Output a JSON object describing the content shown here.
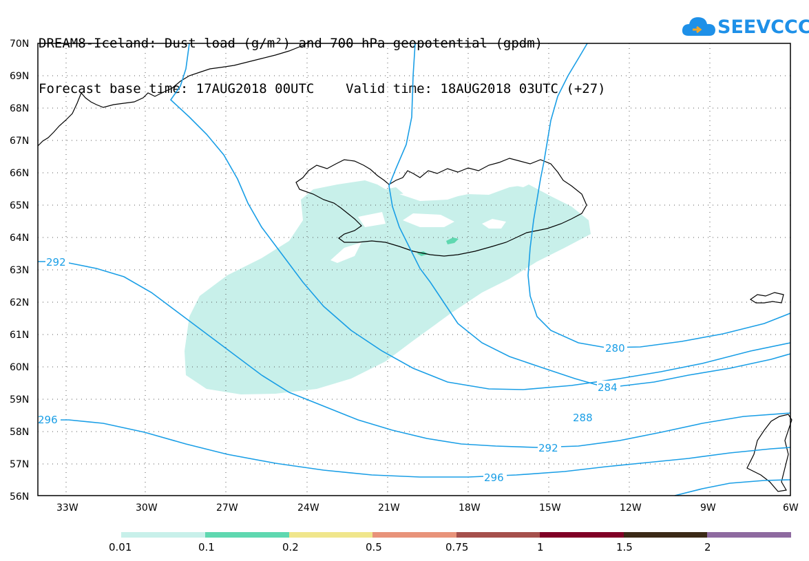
{
  "header": {
    "line1": "DREAM8-Iceland: Dust load (g/m²) and 700 hPa geopotential (gpdm)",
    "line2": "Forecast base time: 17AUG2018 00UTC    Valid time: 18AUG2018 03UTC (+27)"
  },
  "logo": {
    "text": "SEEVCCC",
    "color": "#1e90e8"
  },
  "map": {
    "lat_labels": [
      "70N",
      "69N",
      "68N",
      "67N",
      "66N",
      "65N",
      "64N",
      "63N",
      "62N",
      "61N",
      "60N",
      "59N",
      "58N",
      "57N",
      "56N"
    ],
    "lon_labels": [
      "33W",
      "30W",
      "27W",
      "24W",
      "21W",
      "18W",
      "15W",
      "12W",
      "9W",
      "6W"
    ],
    "contour_labels": [
      "292",
      "296",
      "280",
      "284",
      "288",
      "292",
      "296"
    ],
    "contour_color": "#199ee6",
    "dust_fill_color": "#c8f0ea",
    "dust_fill_color_2": "#5fd8b0"
  },
  "legend": {
    "labels": [
      "0.01",
      "0.1",
      "0.2",
      "0.5",
      "0.75",
      "1",
      "1.5",
      "2"
    ],
    "colors": [
      "#c8f0ea",
      "#5fd8b0",
      "#f0e68c",
      "#e8937a",
      "#a5504c",
      "#800026",
      "#3b2a17",
      "#8e6aa0"
    ]
  }
}
